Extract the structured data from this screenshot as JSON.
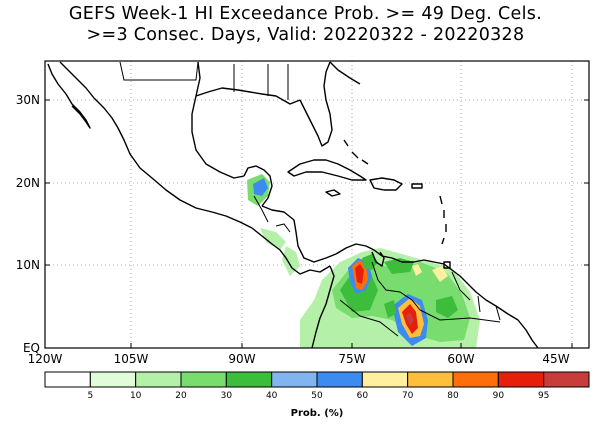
{
  "title": {
    "line1": "GEFS Week-1 HI Exceedance Prob. >= 49 Deg. Cels.",
    "line2": ">=3 Consec. Days, Valid: 20220322 - 20220328"
  },
  "map": {
    "lat_labels": [
      "30N",
      "20N",
      "10N",
      "EQ"
    ],
    "lon_labels": [
      "120W",
      "105W",
      "90W",
      "75W",
      "60W",
      "45W"
    ],
    "grid": "dotted",
    "extent": {
      "lon": [
        -120,
        -42
      ],
      "lat": [
        0,
        35
      ]
    }
  },
  "colorbar": {
    "unit_label": "Prob. (%)",
    "tick_labels": [
      "5",
      "10",
      "20",
      "30",
      "40",
      "50",
      "60",
      "70",
      "80",
      "90",
      "95"
    ],
    "colors": [
      "#ffffff",
      "#e0fcd8",
      "#b4f0a8",
      "#78dc6e",
      "#3cbe3c",
      "#82b4f0",
      "#3c8cf0",
      "#fff0a0",
      "#ffbe3c",
      "#ff6e0a",
      "#e61e0a",
      "#c83c3c"
    ]
  }
}
